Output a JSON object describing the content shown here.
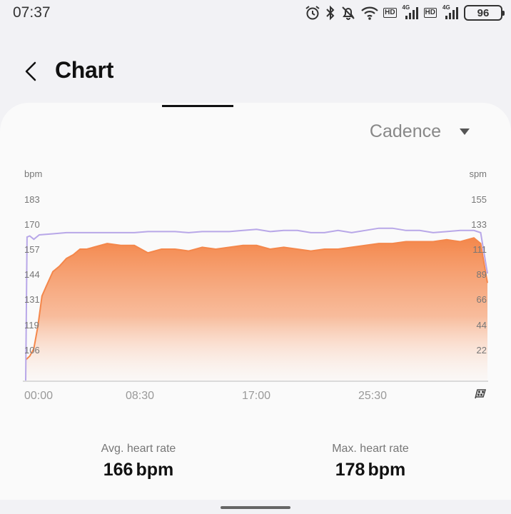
{
  "status": {
    "time": "07:37",
    "battery": "96",
    "hd1": "HD",
    "hd2": "HD",
    "net1": "4G",
    "net2": "4G"
  },
  "header": {
    "title": "Chart"
  },
  "metric_selector": {
    "label": "Cadence"
  },
  "chart_data": {
    "type": "area",
    "left_axis": {
      "unit": "bpm",
      "ticks": [
        "183",
        "170",
        "157",
        "144",
        "131",
        "119",
        "106"
      ],
      "range": [
        93,
        190
      ]
    },
    "right_axis": {
      "unit": "spm",
      "ticks": [
        "155",
        "133",
        "111",
        "89",
        "66",
        "44",
        "22"
      ],
      "range": [
        0,
        165
      ]
    },
    "x_ticks": [
      "00:00",
      "08:30",
      "17:00",
      "25:30"
    ],
    "x_range_minutes": [
      0,
      34
    ],
    "series": [
      {
        "name": "",
        "axis": "left",
        "color": "#f4874b",
        "x": [
          0,
          0.3,
          0.6,
          0.9,
          1.2,
          1.5,
          2,
          2.5,
          3,
          3.5,
          4,
          4.5,
          5,
          6,
          7,
          8,
          9,
          10,
          11,
          12,
          13,
          14,
          15,
          16,
          17,
          18,
          19,
          20,
          21,
          22,
          23,
          24,
          25,
          26,
          27,
          28,
          29,
          30,
          31,
          32,
          33,
          33.5,
          34
        ],
        "values": [
          104,
          106,
          110,
          122,
          138,
          143,
          151,
          154,
          158,
          160,
          163,
          163,
          164,
          166,
          165,
          165,
          161,
          163,
          163,
          162,
          164,
          163,
          164,
          165,
          165,
          163,
          164,
          163,
          162,
          163,
          163,
          164,
          165,
          166,
          166,
          167,
          167,
          167,
          168,
          167,
          169,
          166,
          145
        ]
      },
      {
        "name": "",
        "axis": "right",
        "color": "#b8a7e8",
        "x": [
          0,
          0.1,
          0.3,
          0.6,
          1,
          2,
          3,
          4,
          5,
          6,
          7,
          8,
          9,
          10,
          11,
          12,
          13,
          14,
          15,
          16,
          17,
          18,
          19,
          20,
          21,
          22,
          23,
          24,
          25,
          26,
          27,
          28,
          29,
          30,
          31,
          32,
          33,
          33.5,
          34
        ],
        "values": [
          0,
          130,
          131,
          128,
          132,
          133,
          134,
          134,
          134,
          134,
          134,
          134,
          135,
          135,
          135,
          134,
          135,
          135,
          135,
          136,
          137,
          135,
          136,
          136,
          134,
          134,
          136,
          134,
          136,
          138,
          138,
          136,
          136,
          134,
          135,
          136,
          136,
          134,
          97
        ]
      }
    ],
    "grid": false,
    "legend": "none"
  },
  "stats": {
    "avg_label": "Avg. heart rate",
    "avg_value": "166",
    "avg_unit": "bpm",
    "max_label": "Max. heart rate",
    "max_value": "178",
    "max_unit": "bpm"
  },
  "icons": {
    "alarm": "alarm-icon",
    "bluetooth": "bluetooth-icon",
    "mute": "bell-off-icon",
    "wifi": "wifi-icon",
    "back": "chevron-left-icon",
    "dropdown": "triangle-down-icon",
    "finish": "checkered-flag-icon"
  }
}
